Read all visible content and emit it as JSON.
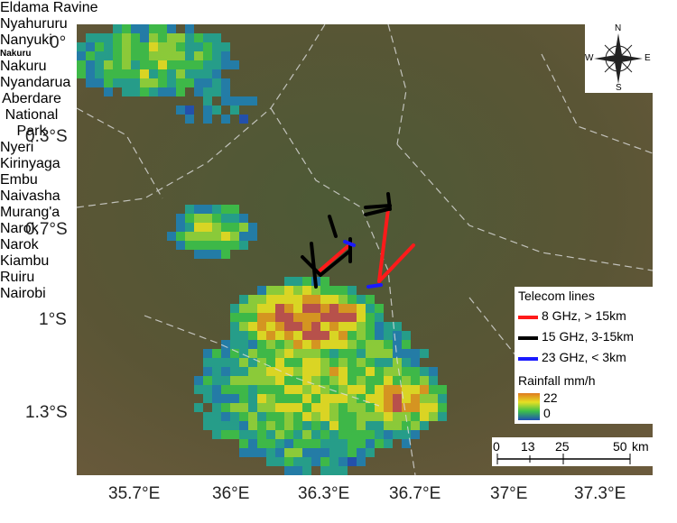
{
  "axes": {
    "y_labels": [
      "0°",
      "0.3°S",
      "0.7°S",
      "1°S",
      "1.3°S"
    ],
    "x_labels": [
      "35.7°E",
      "36°E",
      "36.3°E",
      "36.7°E",
      "37°E",
      "37.3°E"
    ]
  },
  "places": [
    "Eldama Ravine",
    "Nyahururu",
    "Nanyuki",
    "Nakuru",
    "Nakuru",
    "Nyandarua",
    "Aberdare National Park",
    "Nyeri",
    "Kirinyaga",
    "Embu",
    "Naivasha",
    "Murang'a",
    "Narok",
    "Narok",
    "Kiambu",
    "Ruiru",
    "Nairobi"
  ],
  "compass": {
    "n": "N",
    "s": "S",
    "e": "E",
    "w": "W"
  },
  "legend": {
    "title": "Telecom lines",
    "lines": [
      {
        "label": "8 GHz, > 15km",
        "color": "#ff1a1a"
      },
      {
        "label": "15 GHz, 3-15km",
        "color": "#000000"
      },
      {
        "label": "23 GHz, < 3km",
        "color": "#1a1aff"
      }
    ],
    "rainfall_title": "Rainfall mm/h",
    "rainfall_max": "22",
    "rainfall_min": "0"
  },
  "scale_bar": {
    "labels": [
      "0",
      "13",
      "25",
      "50"
    ],
    "unit": "km"
  }
}
